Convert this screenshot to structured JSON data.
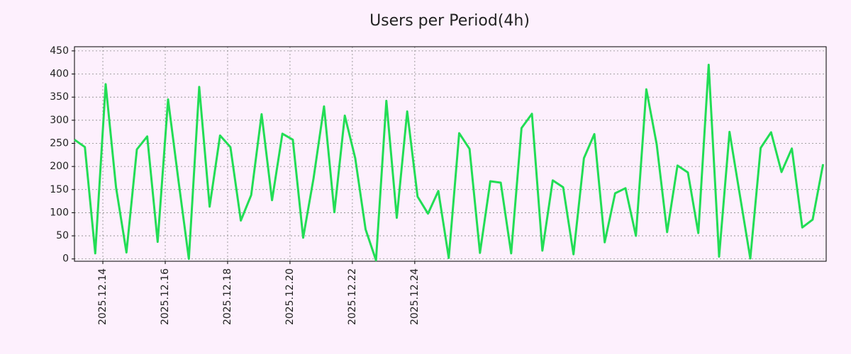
{
  "chart_data": {
    "type": "line",
    "title": "Users per Period(4h)",
    "categories": [
      null,
      null,
      null,
      null,
      null,
      null,
      null,
      null,
      null,
      null,
      null,
      null,
      null,
      null,
      null,
      null,
      null,
      null,
      null,
      null,
      null,
      null,
      null,
      null,
      null,
      null,
      null,
      null,
      null,
      null,
      null,
      null,
      null,
      null,
      null,
      null,
      null,
      null,
      null,
      null,
      null,
      null,
      null,
      null,
      null,
      null,
      null,
      null,
      null,
      null,
      null,
      null,
      null,
      null,
      null,
      null,
      null,
      null,
      null,
      null,
      null,
      null,
      null,
      null,
      null,
      null,
      null,
      null,
      null,
      null,
      null,
      null,
      null
    ],
    "values": [
      258,
      242,
      12,
      378,
      155,
      14,
      237,
      265,
      37,
      345,
      170,
      0,
      372,
      113,
      267,
      242,
      83,
      138,
      313,
      127,
      271,
      258,
      46,
      175,
      330,
      101,
      310,
      218,
      64,
      -3,
      342,
      89,
      319,
      135,
      98,
      147,
      2,
      272,
      238,
      13,
      168,
      165,
      12,
      283,
      314,
      18,
      170,
      155,
      10,
      218,
      270,
      36,
      142,
      153,
      50,
      367,
      248,
      58,
      202,
      187,
      56,
      420,
      5,
      275,
      138,
      1,
      240,
      274,
      188,
      239,
      68,
      85,
      205
    ],
    "color": "#22dd55",
    "xlim": [
      0,
      72.3
    ],
    "xticks": [
      {
        "value": 2.73,
        "label": "2025.12.14"
      },
      {
        "value": 8.73,
        "label": "2025.12.16"
      },
      {
        "value": 14.73,
        "label": "2025.12.18"
      },
      {
        "value": 20.73,
        "label": "2025.12.20"
      },
      {
        "value": 26.73,
        "label": "2025.12.22"
      },
      {
        "value": 32.73,
        "label": "2025.12.24"
      }
    ],
    "ylim": [
      -5,
      459
    ],
    "yticks": [
      0,
      50,
      100,
      150,
      200,
      250,
      300,
      350,
      400,
      450
    ],
    "grid": true
  }
}
